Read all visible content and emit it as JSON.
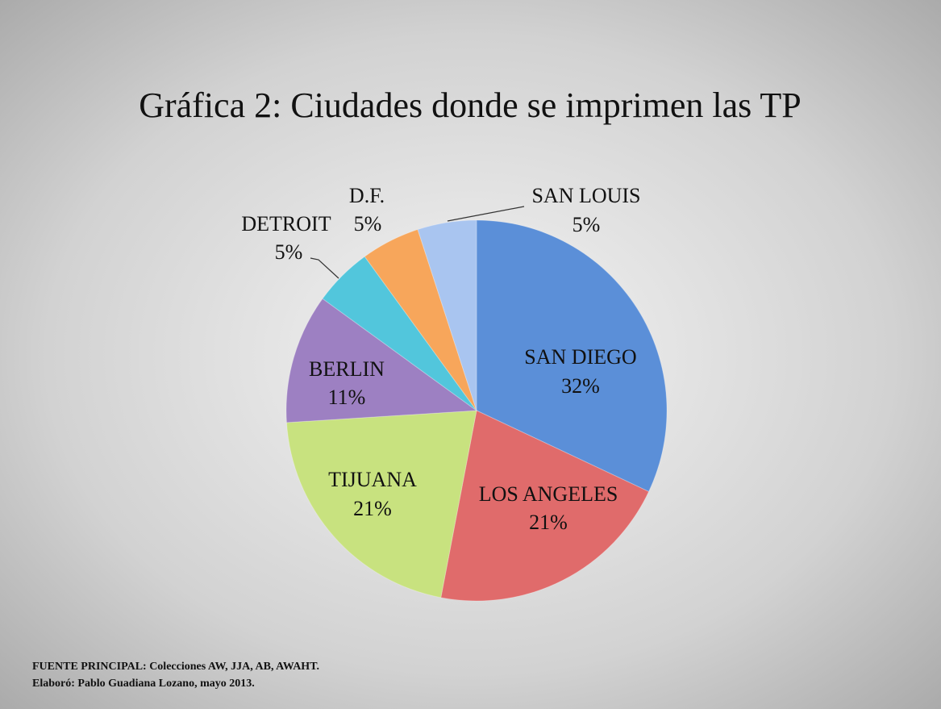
{
  "chart_data": {
    "type": "pie",
    "title": "Gráfica 2: Ciudades donde se imprimen las TP",
    "categories": [
      "SAN DIEGO",
      "LOS ANGELES",
      "TIJUANA",
      "BERLIN",
      "DETROIT",
      "D.F.",
      "SAN LOUIS"
    ],
    "values": [
      32,
      21,
      21,
      11,
      5,
      5,
      5
    ],
    "value_labels": [
      "32%",
      "21%",
      "21%",
      "11%",
      "5%",
      "5%",
      "5%"
    ],
    "colors": [
      "#5b8fd8",
      "#e06b6b",
      "#c8e27f",
      "#9d80c2",
      "#52c6dc",
      "#f7a65b",
      "#a9c5f0"
    ],
    "footnotes": [
      "FUENTE PRINCIPAL: Colecciones AW, JJA, AB, AWAHT.",
      "Elaboró: Pablo Guadiana Lozano, mayo 2013."
    ]
  }
}
